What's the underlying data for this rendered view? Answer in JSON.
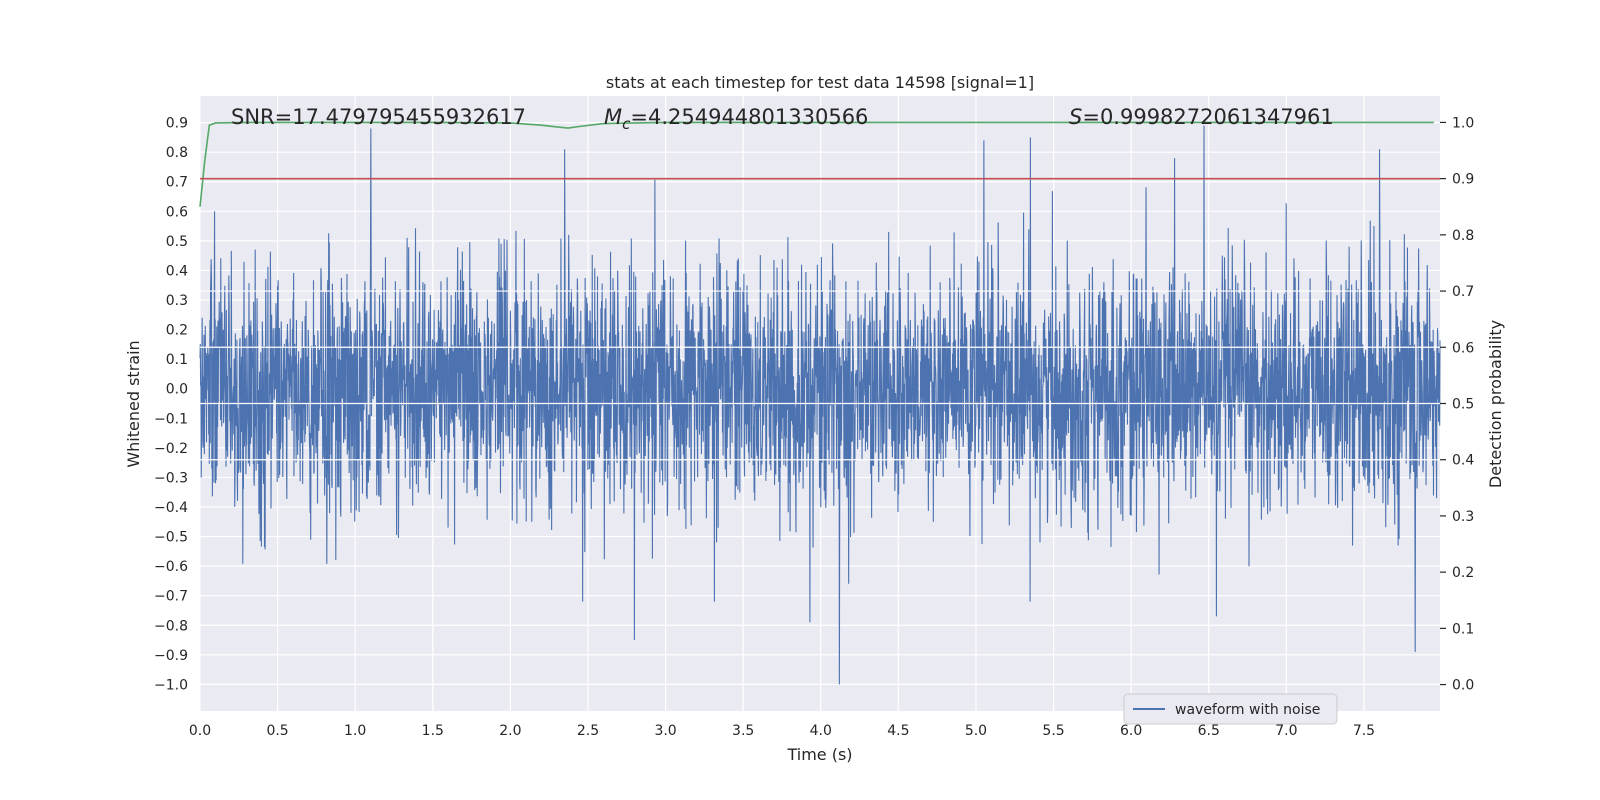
{
  "chart_data": {
    "type": "line",
    "title": "stats at each timestep for test data 14598 [signal=1]",
    "xlabel": "Time (s)",
    "ylabel_left": "Whitened strain",
    "ylabel_right": "Detection probability",
    "xlim": [
      0.0,
      7.99
    ],
    "ylim_left": [
      -1.09,
      0.99
    ],
    "ylim_right": [
      -0.047,
      1.047
    ],
    "x_ticks": [
      "0.0",
      "0.5",
      "1.0",
      "1.5",
      "2.0",
      "2.5",
      "3.0",
      "3.5",
      "4.0",
      "4.5",
      "5.0",
      "5.5",
      "6.0",
      "6.5",
      "7.0",
      "7.5"
    ],
    "y_left_ticks": [
      "0.9",
      "0.8",
      "0.7",
      "0.6",
      "0.5",
      "0.4",
      "0.3",
      "0.2",
      "0.1",
      "0.0",
      "−0.1",
      "−0.2",
      "−0.3",
      "−0.4",
      "−0.5",
      "−0.6",
      "−0.7",
      "−0.8",
      "−0.9",
      "−1.0"
    ],
    "y_right_ticks": [
      "1.0",
      "0.9",
      "0.8",
      "0.7",
      "0.6",
      "0.5",
      "0.4",
      "0.3",
      "0.2",
      "0.1",
      "0.0"
    ],
    "grid": true,
    "threshold": 0.9,
    "annotations": {
      "snr": "SNR=17.479795455932617",
      "mc_prefix": "M",
      "mc_sub": "c",
      "mc_value": "=4.254944801330566",
      "s_prefix": "S",
      "s_value": "=0.9998272061347961"
    },
    "legend": {
      "label": "waveform with noise",
      "position": "lower-right"
    },
    "series": [
      {
        "name": "waveform with noise",
        "axis": "left",
        "color": "#4c72b0",
        "description": "dense whitened strain noise, mostly within ±0.4, peaks to 0.88 near t=1.1s and -1.0 near t=4.12s",
        "peaks": [
          {
            "x": 1.1,
            "y": 0.88
          },
          {
            "x": 6.47,
            "y": 0.89
          },
          {
            "x": 5.05,
            "y": 0.84
          },
          {
            "x": 5.35,
            "y": 0.85
          },
          {
            "x": 7.6,
            "y": 0.81
          },
          {
            "x": 2.35,
            "y": 0.81
          },
          {
            "x": 6.28,
            "y": 0.78
          },
          {
            "x": 4.12,
            "y": -1.0
          },
          {
            "x": 7.83,
            "y": -0.89
          },
          {
            "x": 2.8,
            "y": -0.85
          },
          {
            "x": 3.93,
            "y": -0.79
          },
          {
            "x": 6.55,
            "y": -0.77
          }
        ]
      },
      {
        "name": "detection probability",
        "axis": "right",
        "color": "#55a868",
        "x": [
          0.0,
          0.03,
          0.06,
          0.1,
          0.3,
          1.0,
          1.5,
          2.0,
          2.2,
          2.3,
          2.37,
          2.45,
          2.6,
          3.0,
          4.0,
          5.0,
          6.0,
          7.0,
          7.95
        ],
        "y": [
          0.85,
          0.93,
          0.995,
          0.999,
          1.0,
          1.0,
          1.0,
          0.999,
          0.995,
          0.992,
          0.99,
          0.993,
          0.998,
          1.0,
          1.0,
          1.0,
          1.0,
          1.0,
          1.0
        ]
      },
      {
        "name": "threshold",
        "axis": "right",
        "color": "#c44e52",
        "x": [
          0.0,
          7.99
        ],
        "y": [
          0.9,
          0.9
        ]
      }
    ]
  },
  "colors": {
    "plot_bg": "#eaeaf2",
    "grid": "#ffffff",
    "waveform": "#4c72b0",
    "probability": "#55a868",
    "threshold": "#c44e52"
  }
}
